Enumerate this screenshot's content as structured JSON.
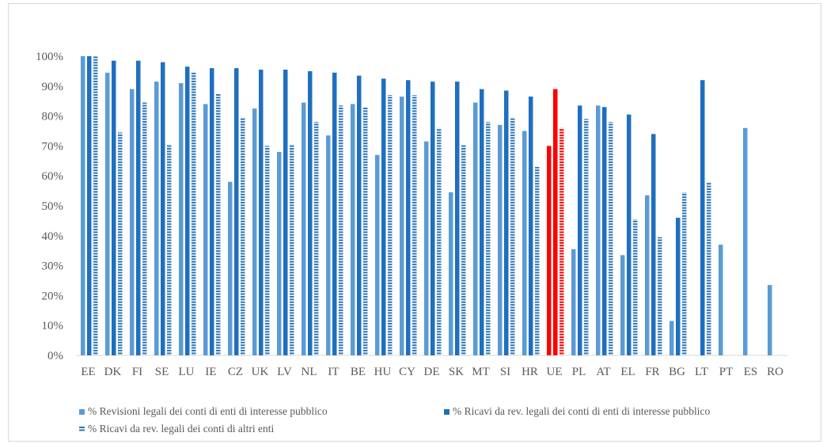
{
  "chart_data": {
    "type": "bar",
    "categories": [
      "EE",
      "DK",
      "FI",
      "SE",
      "LU",
      "IE",
      "CZ",
      "UK",
      "LV",
      "NL",
      "IT",
      "BE",
      "HU",
      "CY",
      "DE",
      "SK",
      "MT",
      "SI",
      "HR",
      "UE",
      "PL",
      "AT",
      "EL",
      "FR",
      "BG",
      "LT",
      "PT",
      "ES",
      "RO"
    ],
    "series": [
      {
        "name": "% Revisioni legali dei conti di enti di interesse pubblico",
        "values": [
          100,
          94.5,
          89,
          91.5,
          91,
          84,
          58,
          82.5,
          68,
          84.5,
          73.5,
          84,
          67,
          86.5,
          71.5,
          54.5,
          84.5,
          77,
          75,
          70,
          35.5,
          83.5,
          33.5,
          53.5,
          11.5,
          null,
          37,
          76,
          23.5
        ]
      },
      {
        "name": "% Ricavi da rev. legali dei conti di enti di interesse pubblico",
        "values": [
          100,
          98.5,
          98.5,
          98,
          96.5,
          96,
          96,
          95.5,
          95.5,
          95,
          94.5,
          93.5,
          92.5,
          92,
          91.5,
          91.5,
          89,
          88.5,
          86.5,
          89,
          83.5,
          83,
          80.5,
          74,
          46,
          92,
          null,
          null,
          null
        ]
      },
      {
        "name": "% Ricavi da rev. legali dei conti di altri enti",
        "values": [
          100,
          74.5,
          84.5,
          70.5,
          94.5,
          87.5,
          79.5,
          70,
          70.5,
          78,
          83.5,
          83,
          87,
          87,
          76,
          70.5,
          78,
          79.5,
          63,
          76,
          79,
          78,
          45.5,
          39.5,
          54.5,
          58,
          null,
          null,
          null
        ]
      }
    ],
    "colors": {
      "series1": "#5b9bd5",
      "series2": "#1f6fbf",
      "series3": "#2e75b6",
      "highlight": "#ff0000",
      "highlight_category": "UE"
    },
    "yticks": [
      "0%",
      "10%",
      "20%",
      "30%",
      "40%",
      "50%",
      "60%",
      "70%",
      "80%",
      "90%",
      "100%"
    ],
    "ylim": [
      0,
      100
    ],
    "title": "",
    "xlabel": "",
    "ylabel": "",
    "grid": false,
    "legend_position": "bottom"
  }
}
